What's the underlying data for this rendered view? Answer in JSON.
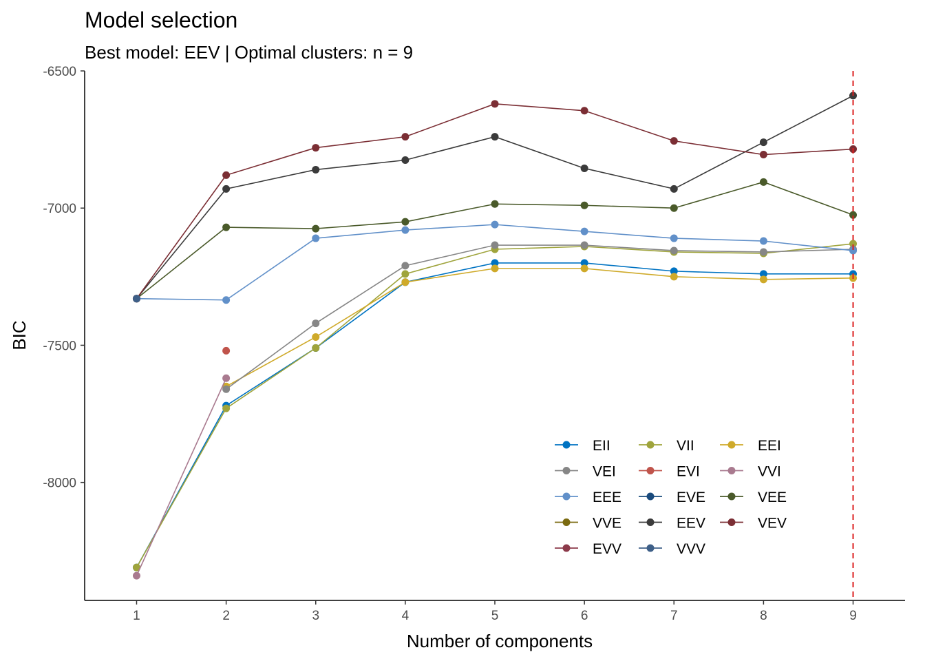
{
  "chart_data": {
    "type": "line",
    "title": "Model selection",
    "subtitle": "Best model: EEV | Optimal clusters: n = 9",
    "xlabel": "Number of components",
    "ylabel": "BIC",
    "x": [
      1,
      2,
      3,
      4,
      5,
      6,
      7,
      8,
      9
    ],
    "x_ticks": [
      "1",
      "2",
      "3",
      "4",
      "5",
      "6",
      "7",
      "8",
      "9"
    ],
    "y_ticks": [
      -6500,
      -7000,
      -7500,
      -8000
    ],
    "y_tick_labels": [
      "-6500",
      "-7000",
      "-7500",
      "-8000"
    ],
    "xlim": [
      0.42,
      9.58
    ],
    "ylim": [
      -8430,
      -6500
    ],
    "optimal_n": 9,
    "optimal_line_color": "#dc1e1e",
    "grid": false,
    "legend_position": "bottom-right",
    "series": [
      {
        "name": "EII",
        "color": "#0073c2",
        "values": [
          -8310,
          -7720,
          -7510,
          -7270,
          -7200,
          -7200,
          -7230,
          -7240,
          -7240
        ]
      },
      {
        "name": "VII",
        "color": "#9fa43c",
        "values": [
          -8310,
          -7730,
          -7510,
          -7240,
          -7150,
          -7140,
          -7160,
          -7165,
          -7130
        ]
      },
      {
        "name": "EEI",
        "color": "#cfaa2a",
        "values": [
          null,
          -7650,
          -7470,
          -7270,
          -7220,
          -7220,
          -7250,
          -7260,
          -7255
        ]
      },
      {
        "name": "VEI",
        "color": "#868686",
        "values": [
          null,
          -7660,
          -7420,
          -7210,
          -7135,
          -7135,
          -7155,
          -7160,
          -7150
        ]
      },
      {
        "name": "EVI",
        "color": "#c0544b",
        "values": [
          null,
          -7520,
          null,
          null,
          null,
          null,
          null,
          null,
          null
        ]
      },
      {
        "name": "VVI",
        "color": "#a97a8f",
        "values": [
          -8340,
          -7620,
          null,
          null,
          null,
          null,
          null,
          null,
          null
        ]
      },
      {
        "name": "EEE",
        "color": "#6190c9",
        "values": [
          -7330,
          -7335,
          -7110,
          -7080,
          -7060,
          -7085,
          -7110,
          -7120,
          -7155
        ]
      },
      {
        "name": "EVE",
        "color": "#1a4b7d",
        "values": [
          null,
          null,
          null,
          null,
          null,
          null,
          null,
          null,
          null
        ]
      },
      {
        "name": "VEE",
        "color": "#4a5a2a",
        "values": [
          -7330,
          -7070,
          -7075,
          -7050,
          -6985,
          -6990,
          -7000,
          -6905,
          -7025
        ]
      },
      {
        "name": "VVE",
        "color": "#7b6a10",
        "values": [
          null,
          null,
          null,
          null,
          null,
          null,
          null,
          null,
          null
        ]
      },
      {
        "name": "EEV",
        "color": "#3b3b3b",
        "values": [
          -7330,
          -6930,
          -6860,
          -6825,
          -6740,
          -6855,
          -6930,
          -6760,
          -6590
        ]
      },
      {
        "name": "VEV",
        "color": "#7b2e34",
        "values": [
          -7330,
          -6880,
          -6780,
          -6740,
          -6620,
          -6645,
          -6755,
          -6805,
          -6785
        ]
      },
      {
        "name": "EVV",
        "color": "#8c3a4a",
        "values": [
          null,
          null,
          null,
          null,
          null,
          null,
          null,
          null,
          null
        ]
      },
      {
        "name": "VVV",
        "color": "#3e5f88",
        "values": [
          -7330,
          null,
          null,
          null,
          null,
          null,
          null,
          null,
          null
        ]
      }
    ],
    "legend_layout": [
      [
        "EII",
        "VII",
        "EEI"
      ],
      [
        "VEI",
        "EVI",
        "VVI"
      ],
      [
        "EEE",
        "EVE",
        "VEE"
      ],
      [
        "VVE",
        "EEV",
        "VEV"
      ],
      [
        "EVV",
        "VVV"
      ]
    ]
  }
}
